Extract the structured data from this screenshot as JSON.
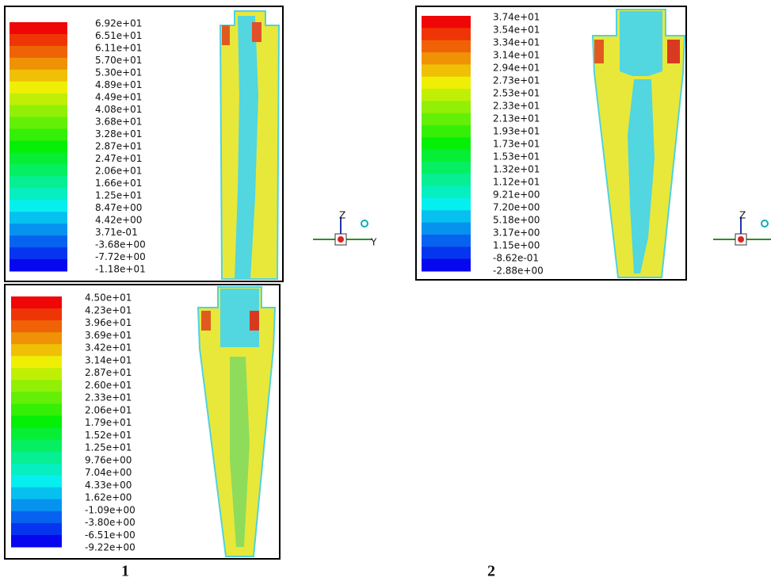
{
  "panels": [
    {
      "labels": [
        "6.92e+01",
        "6.51e+01",
        "6.11e+01",
        "5.70e+01",
        "5.30e+01",
        "4.89e+01",
        "4.49e+01",
        "4.08e+01",
        "3.68e+01",
        "3.28e+01",
        "2.87e+01",
        "2.47e+01",
        "2.06e+01",
        "1.66e+01",
        "1.25e+01",
        "8.47e+00",
        "4.42e+00",
        "3.71e-01",
        "-3.68e+00",
        "-7.72e+00",
        "-1.18e+01"
      ]
    },
    {
      "labels": [
        "3.74e+01",
        "3.54e+01",
        "3.34e+01",
        "3.14e+01",
        "2.94e+01",
        "2.73e+01",
        "2.53e+01",
        "2.33e+01",
        "2.13e+01",
        "1.93e+01",
        "1.73e+01",
        "1.53e+01",
        "1.32e+01",
        "1.12e+01",
        "9.21e+00",
        "7.20e+00",
        "5.18e+00",
        "3.17e+00",
        "1.15e+00",
        "-8.62e-01",
        "-2.88e+00"
      ]
    },
    {
      "labels": [
        "4.50e+01",
        "4.23e+01",
        "3.96e+01",
        "3.69e+01",
        "3.42e+01",
        "3.14e+01",
        "2.87e+01",
        "2.60e+01",
        "2.33e+01",
        "2.06e+01",
        "1.79e+01",
        "1.52e+01",
        "1.25e+01",
        "9.76e+00",
        "7.04e+00",
        "4.33e+00",
        "1.62e+00",
        "-1.09e+00",
        "-3.80e+00",
        "-6.51e+00",
        "-9.22e+00"
      ]
    }
  ],
  "axes": {
    "z": "Z",
    "y": "Y"
  },
  "captions": [
    "1",
    "2"
  ]
}
